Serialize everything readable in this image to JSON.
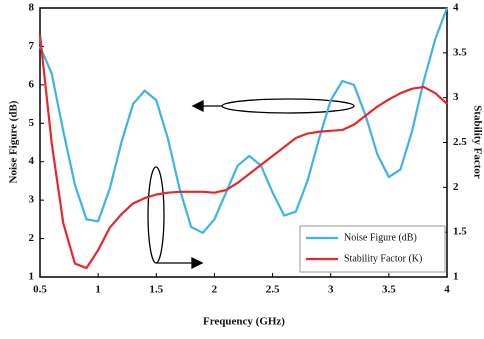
{
  "chart_data": {
    "type": "line",
    "x_label": "Frequency (GHz)",
    "y_label": "Noise Figure (dB)",
    "y2_label": "Stability Factor",
    "x": [
      0.5,
      0.6,
      0.7,
      0.8,
      0.9,
      1.0,
      1.1,
      1.2,
      1.3,
      1.4,
      1.5,
      1.6,
      1.7,
      1.8,
      1.9,
      2.0,
      2.1,
      2.2,
      2.3,
      2.4,
      2.5,
      2.6,
      2.7,
      2.8,
      2.9,
      3.0,
      3.1,
      3.2,
      3.3,
      3.4,
      3.5,
      3.6,
      3.7,
      3.8,
      3.9,
      4.0
    ],
    "series": [
      {
        "name": "Noise Figure (dB)",
        "color": "#3bb4e6",
        "values": [
          7.0,
          6.3,
          4.8,
          3.4,
          2.5,
          2.45,
          3.3,
          4.5,
          5.5,
          5.85,
          5.6,
          4.6,
          3.3,
          2.3,
          2.15,
          2.5,
          3.2,
          3.9,
          4.15,
          3.9,
          3.2,
          2.6,
          2.7,
          3.5,
          4.6,
          5.6,
          6.1,
          6.0,
          5.2,
          4.2,
          3.6,
          3.8,
          4.8,
          6.1,
          7.2,
          8.0
        ]
      },
      {
        "name": "Stability Factor (K)",
        "color": "#e8272b",
        "axis": "y2",
        "values": [
          3.7,
          2.5,
          1.6,
          1.15,
          1.1,
          1.3,
          1.55,
          1.7,
          1.82,
          1.88,
          1.92,
          1.94,
          1.95,
          1.95,
          1.95,
          1.94,
          1.97,
          2.05,
          2.15,
          2.25,
          2.35,
          2.45,
          2.55,
          2.6,
          2.62,
          2.63,
          2.64,
          2.7,
          2.8,
          2.9,
          2.98,
          3.05,
          3.1,
          3.12,
          3.05,
          2.93
        ]
      }
    ],
    "xlim": [
      0.5,
      4
    ],
    "xticks": [
      0.5,
      1,
      1.5,
      2,
      2.5,
      3,
      3.5,
      4
    ],
    "ylim": [
      1,
      8
    ],
    "yticks": [
      1,
      2,
      3,
      4,
      5,
      6,
      7,
      8
    ],
    "y2lim": [
      1,
      4
    ],
    "y2ticks": [
      1,
      1.5,
      2,
      2.5,
      3,
      3.5,
      4
    ],
    "grid": false,
    "legend": "lower right"
  }
}
